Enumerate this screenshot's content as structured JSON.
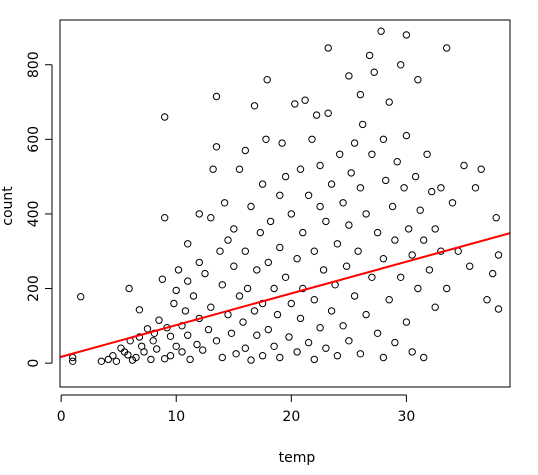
{
  "chart_data": {
    "type": "scatter",
    "title": "",
    "xlabel": "temp",
    "ylabel": "count",
    "xlim": [
      -0.1,
      39.0
    ],
    "ylim": [
      -64,
      920
    ],
    "x_ticks": [
      0,
      10,
      20,
      30
    ],
    "y_ticks": [
      0,
      200,
      400,
      600,
      800
    ],
    "grid": false,
    "marker": "open-circle",
    "trend_line": {
      "label": "",
      "color": "#ff0000",
      "intercept": 17,
      "slope": 8.5
    },
    "series": [
      {
        "name": "",
        "points": [
          [
            1.0,
            5
          ],
          [
            1.0,
            15
          ],
          [
            1.7,
            178
          ],
          [
            3.5,
            5
          ],
          [
            4.1,
            10
          ],
          [
            4.5,
            20
          ],
          [
            4.8,
            5
          ],
          [
            5.2,
            40
          ],
          [
            5.5,
            30
          ],
          [
            5.8,
            22
          ],
          [
            5.9,
            200
          ],
          [
            6.0,
            60
          ],
          [
            6.2,
            8
          ],
          [
            6.5,
            15
          ],
          [
            6.8,
            70
          ],
          [
            6.8,
            143
          ],
          [
            7.0,
            45
          ],
          [
            7.2,
            30
          ],
          [
            7.5,
            92
          ],
          [
            7.8,
            10
          ],
          [
            8.0,
            60
          ],
          [
            8.1,
            80
          ],
          [
            8.3,
            38
          ],
          [
            8.5,
            115
          ],
          [
            8.8,
            225
          ],
          [
            9.0,
            12
          ],
          [
            9.0,
            390
          ],
          [
            9.0,
            660
          ],
          [
            9.2,
            95
          ],
          [
            9.5,
            20
          ],
          [
            9.5,
            72
          ],
          [
            9.8,
            160
          ],
          [
            10.0,
            45
          ],
          [
            10.0,
            195
          ],
          [
            10.2,
            250
          ],
          [
            10.5,
            30
          ],
          [
            10.5,
            100
          ],
          [
            10.8,
            140
          ],
          [
            11.0,
            75
          ],
          [
            11.0,
            220
          ],
          [
            11.0,
            320
          ],
          [
            11.2,
            10
          ],
          [
            11.5,
            180
          ],
          [
            11.8,
            50
          ],
          [
            12.0,
            120
          ],
          [
            12.0,
            270
          ],
          [
            12.0,
            400
          ],
          [
            12.3,
            35
          ],
          [
            12.5,
            240
          ],
          [
            12.8,
            90
          ],
          [
            13.0,
            150
          ],
          [
            13.0,
            390
          ],
          [
            13.2,
            520
          ],
          [
            13.5,
            60
          ],
          [
            13.5,
            715
          ],
          [
            13.5,
            580
          ],
          [
            13.8,
            300
          ],
          [
            14.0,
            15
          ],
          [
            14.0,
            210
          ],
          [
            14.2,
            430
          ],
          [
            14.5,
            130
          ],
          [
            14.5,
            330
          ],
          [
            14.8,
            80
          ],
          [
            15.0,
            260
          ],
          [
            15.0,
            360
          ],
          [
            15.2,
            25
          ],
          [
            15.5,
            180
          ],
          [
            15.5,
            520
          ],
          [
            15.8,
            110
          ],
          [
            16.0,
            40
          ],
          [
            16.0,
            300
          ],
          [
            16.0,
            570
          ],
          [
            16.2,
            200
          ],
          [
            16.5,
            8
          ],
          [
            16.5,
            420
          ],
          [
            16.8,
            140
          ],
          [
            16.8,
            690
          ],
          [
            17.0,
            75
          ],
          [
            17.0,
            250
          ],
          [
            17.3,
            350
          ],
          [
            17.5,
            20
          ],
          [
            17.5,
            160
          ],
          [
            17.5,
            480
          ],
          [
            17.8,
            600
          ],
          [
            17.9,
            760
          ],
          [
            18.0,
            90
          ],
          [
            18.0,
            270
          ],
          [
            18.2,
            380
          ],
          [
            18.5,
            45
          ],
          [
            18.5,
            200
          ],
          [
            18.8,
            130
          ],
          [
            19.0,
            15
          ],
          [
            19.0,
            310
          ],
          [
            19.0,
            450
          ],
          [
            19.2,
            590
          ],
          [
            19.5,
            230
          ],
          [
            19.5,
            500
          ],
          [
            19.8,
            70
          ],
          [
            20.0,
            160
          ],
          [
            20.0,
            400
          ],
          [
            20.3,
            695
          ],
          [
            20.5,
            30
          ],
          [
            20.5,
            280
          ],
          [
            20.8,
            120
          ],
          [
            20.8,
            520
          ],
          [
            21.0,
            200
          ],
          [
            21.0,
            350
          ],
          [
            21.2,
            705
          ],
          [
            21.5,
            55
          ],
          [
            21.5,
            450
          ],
          [
            21.8,
            600
          ],
          [
            22.0,
            10
          ],
          [
            22.0,
            170
          ],
          [
            22.0,
            300
          ],
          [
            22.2,
            665
          ],
          [
            22.5,
            95
          ],
          [
            22.5,
            420
          ],
          [
            22.5,
            530
          ],
          [
            22.8,
            250
          ],
          [
            23.0,
            40
          ],
          [
            23.0,
            380
          ],
          [
            23.2,
            845
          ],
          [
            23.2,
            670
          ],
          [
            23.5,
            140
          ],
          [
            23.5,
            480
          ],
          [
            23.8,
            210
          ],
          [
            24.0,
            20
          ],
          [
            24.0,
            320
          ],
          [
            24.2,
            560
          ],
          [
            24.5,
            100
          ],
          [
            24.5,
            430
          ],
          [
            24.8,
            260
          ],
          [
            25.0,
            60
          ],
          [
            25.0,
            370
          ],
          [
            25.0,
            770
          ],
          [
            25.2,
            510
          ],
          [
            25.5,
            180
          ],
          [
            25.5,
            590
          ],
          [
            25.8,
            300
          ],
          [
            26.0,
            25
          ],
          [
            26.0,
            470
          ],
          [
            26.0,
            720
          ],
          [
            26.2,
            640
          ],
          [
            26.5,
            130
          ],
          [
            26.5,
            400
          ],
          [
            26.8,
            825
          ],
          [
            27.0,
            230
          ],
          [
            27.0,
            560
          ],
          [
            27.2,
            780
          ],
          [
            27.5,
            80
          ],
          [
            27.5,
            350
          ],
          [
            27.8,
            890
          ],
          [
            28.0,
            15
          ],
          [
            28.0,
            280
          ],
          [
            28.0,
            600
          ],
          [
            28.2,
            490
          ],
          [
            28.5,
            170
          ],
          [
            28.5,
            700
          ],
          [
            28.8,
            420
          ],
          [
            29.0,
            55
          ],
          [
            29.0,
            330
          ],
          [
            29.2,
            540
          ],
          [
            29.5,
            230
          ],
          [
            29.5,
            800
          ],
          [
            29.8,
            470
          ],
          [
            30.0,
            110
          ],
          [
            30.0,
            610
          ],
          [
            30.0,
            880
          ],
          [
            30.2,
            360
          ],
          [
            30.5,
            30
          ],
          [
            30.5,
            290
          ],
          [
            30.8,
            500
          ],
          [
            31.0,
            200
          ],
          [
            31.0,
            760
          ],
          [
            31.2,
            410
          ],
          [
            31.5,
            15
          ],
          [
            31.5,
            330
          ],
          [
            31.8,
            560
          ],
          [
            32.0,
            250
          ],
          [
            32.2,
            460
          ],
          [
            32.5,
            150
          ],
          [
            32.5,
            360
          ],
          [
            33.0,
            300
          ],
          [
            33.0,
            470
          ],
          [
            33.5,
            845
          ],
          [
            33.5,
            200
          ],
          [
            34.0,
            430
          ],
          [
            34.5,
            300
          ],
          [
            35.0,
            530
          ],
          [
            35.5,
            260
          ],
          [
            36.0,
            470
          ],
          [
            36.5,
            520
          ],
          [
            37.0,
            170
          ],
          [
            37.5,
            240
          ],
          [
            37.8,
            390
          ],
          [
            38.0,
            290
          ],
          [
            38.0,
            145
          ]
        ]
      }
    ]
  }
}
